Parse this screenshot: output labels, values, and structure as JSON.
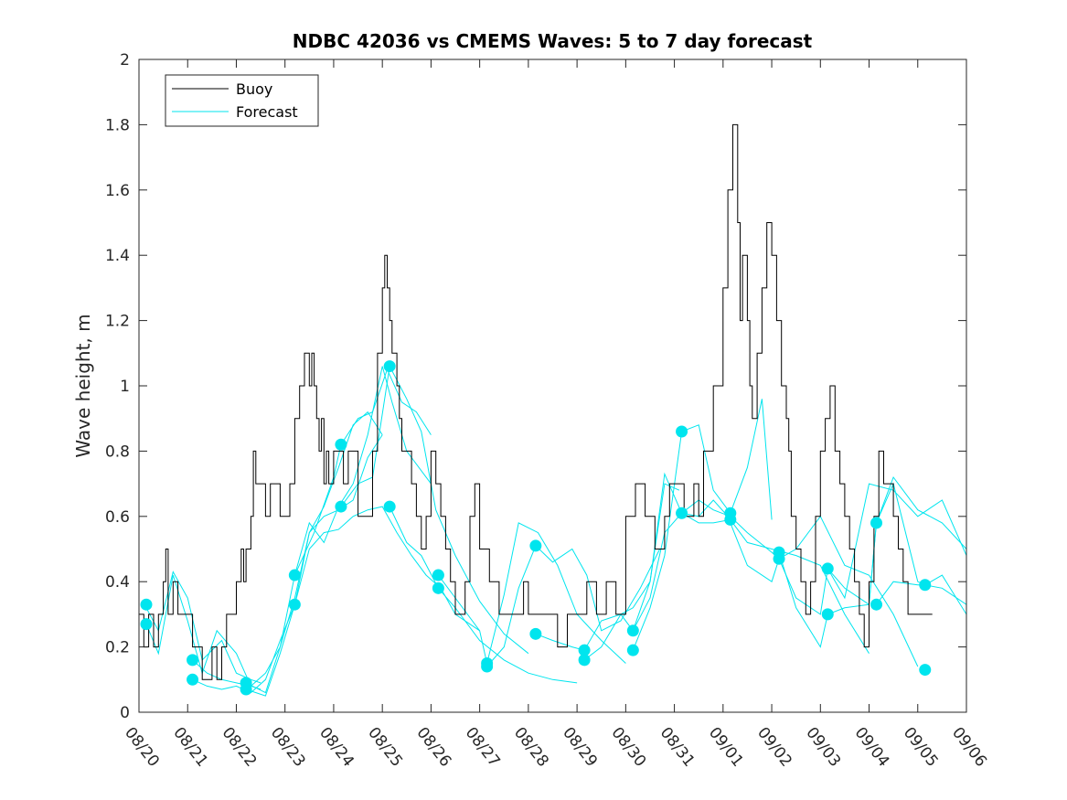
{
  "chart_data": {
    "type": "line",
    "title": "NDBC 42036 vs CMEMS Waves: 5 to 7 day forecast",
    "xlabel": "",
    "ylabel": "Wave height, m",
    "xlim": [
      0,
      17
    ],
    "ylim": [
      0,
      2
    ],
    "grid": false,
    "legend_position": "top-left",
    "yticks": [
      0,
      0.2,
      0.4,
      0.6,
      0.8,
      1,
      1.2,
      1.4,
      1.6,
      1.8,
      2
    ],
    "ytick_labels": [
      "0",
      "0.2",
      "0.4",
      "0.6",
      "0.8",
      "1",
      "1.2",
      "1.4",
      "1.6",
      "1.8",
      "2"
    ],
    "xtick_labels": [
      "08/20",
      "08/21",
      "08/22",
      "08/23",
      "08/24",
      "08/25",
      "08/26",
      "08/27",
      "08/28",
      "08/29",
      "08/30",
      "08/31",
      "09/01",
      "09/02",
      "09/03",
      "09/04",
      "09/05",
      "09/06"
    ],
    "colors": {
      "buoy": "#000000",
      "forecast": "#00e5ee"
    },
    "series": [
      {
        "name": "Buoy",
        "style": "step",
        "x": [
          0,
          0.1,
          0.2,
          0.3,
          0.4,
          0.5,
          0.55,
          0.6,
          0.7,
          0.8,
          0.9,
          1.0,
          1.1,
          1.3,
          1.4,
          1.5,
          1.6,
          1.7,
          1.8,
          1.9,
          2.0,
          2.1,
          2.15,
          2.2,
          2.3,
          2.35,
          2.4,
          2.5,
          2.6,
          2.7,
          2.8,
          2.9,
          3.0,
          3.1,
          3.2,
          3.3,
          3.4,
          3.5,
          3.55,
          3.6,
          3.65,
          3.7,
          3.75,
          3.8,
          3.85,
          3.9,
          4.0,
          4.1,
          4.2,
          4.3,
          4.4,
          4.5,
          4.6,
          4.7,
          4.8,
          4.9,
          5.0,
          5.05,
          5.1,
          5.15,
          5.2,
          5.3,
          5.35,
          5.4,
          5.5,
          5.6,
          5.7,
          5.8,
          5.9,
          6.0,
          6.1,
          6.2,
          6.3,
          6.4,
          6.5,
          6.6,
          6.7,
          6.8,
          6.9,
          7.0,
          7.2,
          7.4,
          7.6,
          7.7,
          7.8,
          7.9,
          8.0,
          8.2,
          8.4,
          8.6,
          8.8,
          9.0,
          9.2,
          9.4,
          9.6,
          9.8,
          10.0,
          10.2,
          10.4,
          10.6,
          10.8,
          10.9,
          11.0,
          11.2,
          11.4,
          11.5,
          11.6,
          11.8,
          12.0,
          12.1,
          12.2,
          12.3,
          12.35,
          12.4,
          12.5,
          12.55,
          12.6,
          12.7,
          12.8,
          12.9,
          13.0,
          13.1,
          13.2,
          13.3,
          13.35,
          13.4,
          13.5,
          13.6,
          13.7,
          13.8,
          13.9,
          14.0,
          14.1,
          14.2,
          14.3,
          14.4,
          14.5,
          14.6,
          14.7,
          14.8,
          14.9,
          15.0,
          15.1,
          15.2,
          15.3,
          15.4,
          15.5,
          15.6,
          15.7,
          15.8,
          15.9,
          16.0,
          16.1,
          16.2,
          16.3
        ],
        "y": [
          0.3,
          0.2,
          0.3,
          0.2,
          0.3,
          0.4,
          0.5,
          0.3,
          0.4,
          0.3,
          0.3,
          0.3,
          0.2,
          0.1,
          0.1,
          0.2,
          0.1,
          0.2,
          0.3,
          0.3,
          0.4,
          0.5,
          0.4,
          0.5,
          0.6,
          0.8,
          0.7,
          0.7,
          0.6,
          0.7,
          0.7,
          0.6,
          0.6,
          0.7,
          0.9,
          1.0,
          1.1,
          1.0,
          1.1,
          1.0,
          0.9,
          0.8,
          0.9,
          0.7,
          0.8,
          0.7,
          0.8,
          0.8,
          0.7,
          0.8,
          0.8,
          0.6,
          0.6,
          0.6,
          0.8,
          1.1,
          1.3,
          1.4,
          1.3,
          1.2,
          1.1,
          1.0,
          0.9,
          0.8,
          0.8,
          0.7,
          0.6,
          0.5,
          0.6,
          0.8,
          0.7,
          0.6,
          0.5,
          0.4,
          0.3,
          0.3,
          0.4,
          0.6,
          0.7,
          0.5,
          0.4,
          0.3,
          0.3,
          0.3,
          0.3,
          0.4,
          0.3,
          0.3,
          0.3,
          0.2,
          0.3,
          0.3,
          0.4,
          0.3,
          0.4,
          0.3,
          0.6,
          0.7,
          0.6,
          0.5,
          0.6,
          0.7,
          0.7,
          0.6,
          0.7,
          0.6,
          0.8,
          1.0,
          1.3,
          1.6,
          1.8,
          1.5,
          1.2,
          1.4,
          1.2,
          1.0,
          0.9,
          1.1,
          1.3,
          1.5,
          1.4,
          1.2,
          1.0,
          0.9,
          0.8,
          0.6,
          0.5,
          0.4,
          0.3,
          0.4,
          0.6,
          0.8,
          0.9,
          1.0,
          0.8,
          0.7,
          0.6,
          0.5,
          0.4,
          0.3,
          0.2,
          0.4,
          0.6,
          0.8,
          0.7,
          0.7,
          0.6,
          0.5,
          0.4,
          0.3,
          0.3,
          0.3,
          0.3,
          0.3,
          0.3
        ]
      },
      {
        "name": "Forecast",
        "x": [
          0.15,
          0.4,
          0.7,
          1.0,
          1.3,
          1.7,
          2.0,
          2.3,
          2.5
        ],
        "y": [
          0.32,
          0.25,
          0.43,
          0.35,
          0.16,
          0.22,
          0.12,
          0.1,
          0.09
        ]
      },
      {
        "name": "Forecast",
        "x": [
          0.15,
          0.4,
          0.7,
          1.0,
          1.3,
          1.6,
          2.0,
          2.3,
          2.5
        ],
        "y": [
          0.27,
          0.18,
          0.42,
          0.28,
          0.12,
          0.25,
          0.18,
          0.08,
          0.07
        ]
      },
      {
        "name": "Forecast",
        "x": [
          1.1,
          1.4,
          1.7,
          2.0,
          2.3,
          2.6,
          2.9,
          3.2,
          3.5,
          3.8,
          4.1,
          4.4,
          4.7,
          5.0
        ],
        "y": [
          0.16,
          0.12,
          0.1,
          0.09,
          0.08,
          0.12,
          0.2,
          0.35,
          0.55,
          0.63,
          0.75,
          0.88,
          0.92,
          0.85
        ]
      },
      {
        "name": "Forecast",
        "x": [
          1.1,
          1.4,
          1.7,
          2.0,
          2.3,
          2.6,
          2.9,
          3.2,
          3.5,
          3.8,
          4.1,
          4.4,
          4.7,
          5.0
        ],
        "y": [
          0.1,
          0.08,
          0.07,
          0.08,
          0.06,
          0.1,
          0.22,
          0.33,
          0.55,
          0.6,
          0.62,
          0.65,
          0.78,
          0.85
        ]
      },
      {
        "name": "Forecast",
        "x": [
          2.2,
          2.6,
          2.9,
          3.2,
          3.5,
          3.8,
          4.1,
          4.4,
          4.7,
          5.0,
          5.2,
          5.5,
          6.0
        ],
        "y": [
          0.09,
          0.06,
          0.2,
          0.42,
          0.58,
          0.52,
          0.63,
          0.7,
          0.85,
          1.06,
          0.95,
          0.8,
          0.7
        ]
      },
      {
        "name": "Forecast",
        "x": [
          2.2,
          2.6,
          2.9,
          3.2,
          3.5,
          3.8,
          4.1,
          4.4,
          4.7,
          5.0,
          5.3,
          5.6,
          5.9,
          6.2,
          6.5,
          7.0
        ],
        "y": [
          0.07,
          0.05,
          0.18,
          0.33,
          0.5,
          0.55,
          0.56,
          0.6,
          0.62,
          0.63,
          0.55,
          0.48,
          0.42,
          0.38,
          0.3,
          0.25
        ]
      },
      {
        "name": "Forecast",
        "x": [
          3.2,
          3.6,
          4.0,
          4.15,
          4.5,
          4.8,
          5.1,
          5.4,
          5.7,
          6.0
        ],
        "y": [
          0.42,
          0.55,
          0.72,
          0.82,
          0.9,
          0.92,
          1.05,
          0.95,
          0.92,
          0.85
        ]
      },
      {
        "name": "Forecast",
        "x": [
          4.15,
          4.5,
          4.8,
          5.15,
          5.5,
          5.8,
          6.1,
          6.5,
          7.0,
          7.5,
          8.0
        ],
        "y": [
          0.63,
          0.7,
          0.72,
          1.06,
          0.96,
          0.86,
          0.62,
          0.48,
          0.34,
          0.24,
          0.18
        ]
      },
      {
        "name": "Forecast",
        "x": [
          5.15,
          5.5,
          5.8,
          6.15,
          6.5,
          7.0,
          7.5,
          8.0,
          8.5,
          9.0
        ],
        "y": [
          0.63,
          0.52,
          0.48,
          0.38,
          0.32,
          0.22,
          0.16,
          0.12,
          0.1,
          0.09
        ]
      },
      {
        "name": "Forecast",
        "x": [
          6.15,
          6.5,
          7.0,
          7.15,
          7.5,
          7.8,
          8.2,
          8.6,
          9.0,
          9.5,
          10.0
        ],
        "y": [
          0.42,
          0.35,
          0.25,
          0.15,
          0.36,
          0.58,
          0.55,
          0.45,
          0.3,
          0.22,
          0.15
        ]
      },
      {
        "name": "Forecast",
        "x": [
          7.15,
          7.5,
          7.8,
          8.15,
          8.5,
          8.9,
          9.2,
          9.5,
          9.9,
          10.3,
          10.7
        ],
        "y": [
          0.14,
          0.2,
          0.38,
          0.51,
          0.46,
          0.5,
          0.42,
          0.25,
          0.28,
          0.38,
          0.5
        ]
      },
      {
        "name": "Forecast",
        "x": [
          8.15,
          8.5,
          8.9,
          9.15,
          9.5,
          9.9,
          10.15,
          10.5,
          10.8,
          11.1
        ],
        "y": [
          0.24,
          0.22,
          0.2,
          0.19,
          0.28,
          0.3,
          0.25,
          0.4,
          0.7,
          0.68
        ]
      },
      {
        "name": "Forecast",
        "x": [
          9.15,
          9.5,
          9.9,
          10.15,
          10.5,
          10.8,
          11.15,
          11.5,
          11.8,
          12.1
        ],
        "y": [
          0.16,
          0.2,
          0.3,
          0.32,
          0.4,
          0.73,
          0.61,
          0.6,
          0.65,
          0.6
        ]
      },
      {
        "name": "Forecast",
        "x": [
          10.15,
          10.5,
          10.8,
          11.15,
          11.5,
          11.8,
          12.15,
          12.5,
          12.8,
          13.0
        ],
        "y": [
          0.19,
          0.32,
          0.48,
          0.86,
          0.88,
          0.68,
          0.61,
          0.75,
          0.96,
          0.59
        ]
      },
      {
        "name": "Forecast",
        "x": [
          10.15,
          10.5,
          10.8,
          11.15,
          11.5,
          11.8,
          12.15,
          12.5,
          13.0,
          13.5,
          14.0,
          14.5,
          15.0
        ],
        "y": [
          0.25,
          0.35,
          0.55,
          0.61,
          0.58,
          0.58,
          0.59,
          0.52,
          0.5,
          0.48,
          0.45,
          0.3,
          0.18
        ]
      },
      {
        "name": "Forecast",
        "x": [
          11.15,
          11.5,
          11.8,
          12.15,
          12.5,
          13.0,
          13.15,
          13.5,
          14.0,
          14.5,
          15.0,
          15.5,
          16.0
        ],
        "y": [
          0.61,
          0.65,
          0.62,
          0.6,
          0.55,
          0.49,
          0.47,
          0.5,
          0.6,
          0.45,
          0.42,
          0.3,
          0.14
        ]
      },
      {
        "name": "Forecast",
        "x": [
          12.15,
          12.5,
          13.0,
          13.15,
          13.5,
          14.0,
          14.15,
          14.5,
          15.0,
          15.5,
          16.0,
          16.5,
          17.0
        ],
        "y": [
          0.58,
          0.45,
          0.4,
          0.47,
          0.35,
          0.3,
          0.44,
          0.35,
          0.7,
          0.68,
          0.6,
          0.65,
          0.48
        ]
      },
      {
        "name": "Forecast",
        "x": [
          13.15,
          13.5,
          14.0,
          14.15,
          14.5,
          15.0,
          15.15,
          15.5,
          16.0,
          16.5,
          17.0
        ],
        "y": [
          0.49,
          0.32,
          0.2,
          0.3,
          0.32,
          0.33,
          0.58,
          0.72,
          0.62,
          0.58,
          0.5
        ]
      },
      {
        "name": "Forecast",
        "x": [
          14.15,
          14.5,
          15.0,
          15.15,
          15.5,
          16.0,
          16.15,
          16.5,
          17.0
        ],
        "y": [
          0.44,
          0.38,
          0.33,
          0.58,
          0.7,
          0.4,
          0.39,
          0.38,
          0.33
        ]
      },
      {
        "name": "Forecast",
        "x": [
          15.15,
          15.5,
          16.0,
          16.15,
          16.5,
          17.0
        ],
        "y": [
          0.33,
          0.4,
          0.39,
          0.39,
          0.42,
          0.3
        ]
      }
    ],
    "markers": {
      "name": "Forecast",
      "x": [
        0.15,
        0.15,
        1.1,
        1.1,
        2.2,
        2.2,
        3.2,
        3.2,
        4.15,
        4.15,
        5.15,
        5.15,
        6.15,
        6.15,
        7.15,
        7.15,
        8.15,
        8.15,
        9.15,
        9.15,
        10.15,
        10.15,
        11.15,
        11.15,
        12.15,
        12.15,
        13.15,
        13.15,
        14.15,
        14.15,
        15.15,
        15.15,
        16.15,
        16.15
      ],
      "y": [
        0.33,
        0.27,
        0.16,
        0.1,
        0.09,
        0.07,
        0.42,
        0.33,
        0.82,
        0.63,
        1.06,
        0.63,
        0.42,
        0.38,
        0.15,
        0.14,
        0.51,
        0.24,
        0.19,
        0.16,
        0.25,
        0.19,
        0.86,
        0.61,
        0.61,
        0.59,
        0.49,
        0.47,
        0.44,
        0.3,
        0.58,
        0.33,
        0.39,
        0.13
      ]
    }
  }
}
